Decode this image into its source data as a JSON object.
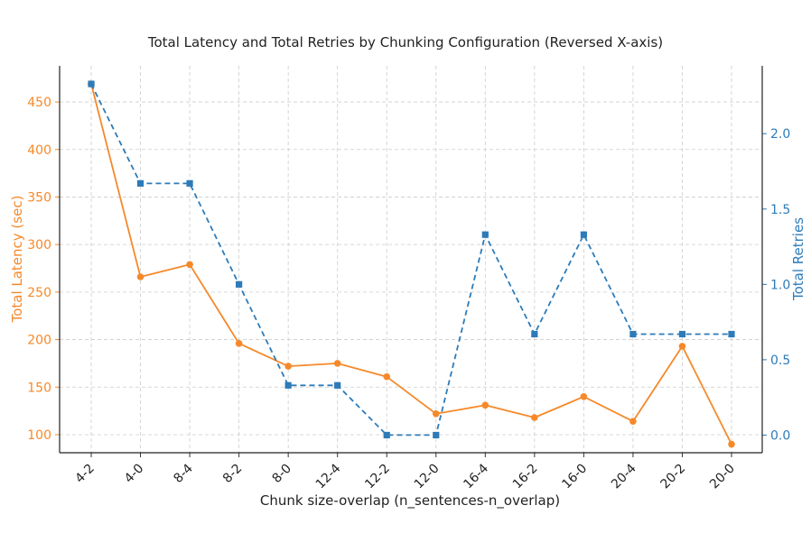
{
  "chart_data": {
    "type": "line",
    "title": "Total Latency and Total Retries by Chunking Configuration (Reversed X-axis)",
    "xlabel": "Chunk size-overlap (n_sentences-n_overlap)",
    "categories": [
      "4-2",
      "4-0",
      "8-4",
      "8-2",
      "8-0",
      "12-4",
      "12-2",
      "12-0",
      "16-4",
      "16-2",
      "16-0",
      "20-4",
      "20-2",
      "20-0"
    ],
    "grid": true,
    "series": [
      {
        "name": "Total Latency (sec)",
        "axis": "left",
        "color": "#f5892a",
        "line_style": "solid",
        "marker": "circle",
        "values": [
          469,
          266,
          279,
          196,
          172,
          175,
          161,
          122,
          131,
          118,
          140,
          114,
          193,
          90
        ]
      },
      {
        "name": "Total Retries",
        "axis": "right",
        "color": "#2d7bb8",
        "line_style": "dashed",
        "marker": "square",
        "values": [
          2.33,
          1.67,
          1.67,
          1.0,
          0.33,
          0.33,
          0.0,
          0.0,
          1.33,
          0.67,
          1.33,
          0.67,
          0.67,
          0.67
        ]
      }
    ],
    "y_left": {
      "label": "Total Latency (sec)",
      "lim": [
        81,
        488
      ],
      "ticks": [
        100,
        150,
        200,
        250,
        300,
        350,
        400,
        450
      ],
      "color": "#f5892a"
    },
    "y_right": {
      "label": "Total Retries",
      "lim": [
        -0.117,
        2.45
      ],
      "ticks": [
        0.0,
        0.5,
        1.0,
        1.5,
        2.0
      ],
      "tick_labels": [
        "0.0",
        "0.5",
        "1.0",
        "1.5",
        "2.0"
      ],
      "color": "#2d7bb8"
    }
  }
}
